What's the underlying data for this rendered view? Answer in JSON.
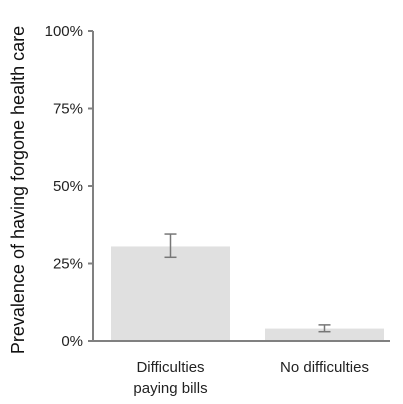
{
  "chart_data": {
    "type": "bar",
    "title": "",
    "xlabel": "",
    "ylabel": "Prevalence of having forgone health care",
    "categories": [
      "Difficulties paying bills",
      "No difficulties"
    ],
    "category_lines": [
      [
        "Difficulties",
        "paying bills"
      ],
      [
        "No difficulties"
      ]
    ],
    "values": [
      30.5,
      4.0
    ],
    "error_low": [
      27.0,
      3.0
    ],
    "error_high": [
      34.5,
      5.2
    ],
    "ylim": [
      0,
      100
    ],
    "yticks": [
      0,
      25,
      50,
      75,
      100
    ],
    "ytick_labels": [
      "0%",
      "25%",
      "50%",
      "75%",
      "100%"
    ],
    "grid": false,
    "legend": "none",
    "colors": {
      "bar": "#e0e0e0",
      "axis": "#808080",
      "error": "#777777"
    }
  }
}
